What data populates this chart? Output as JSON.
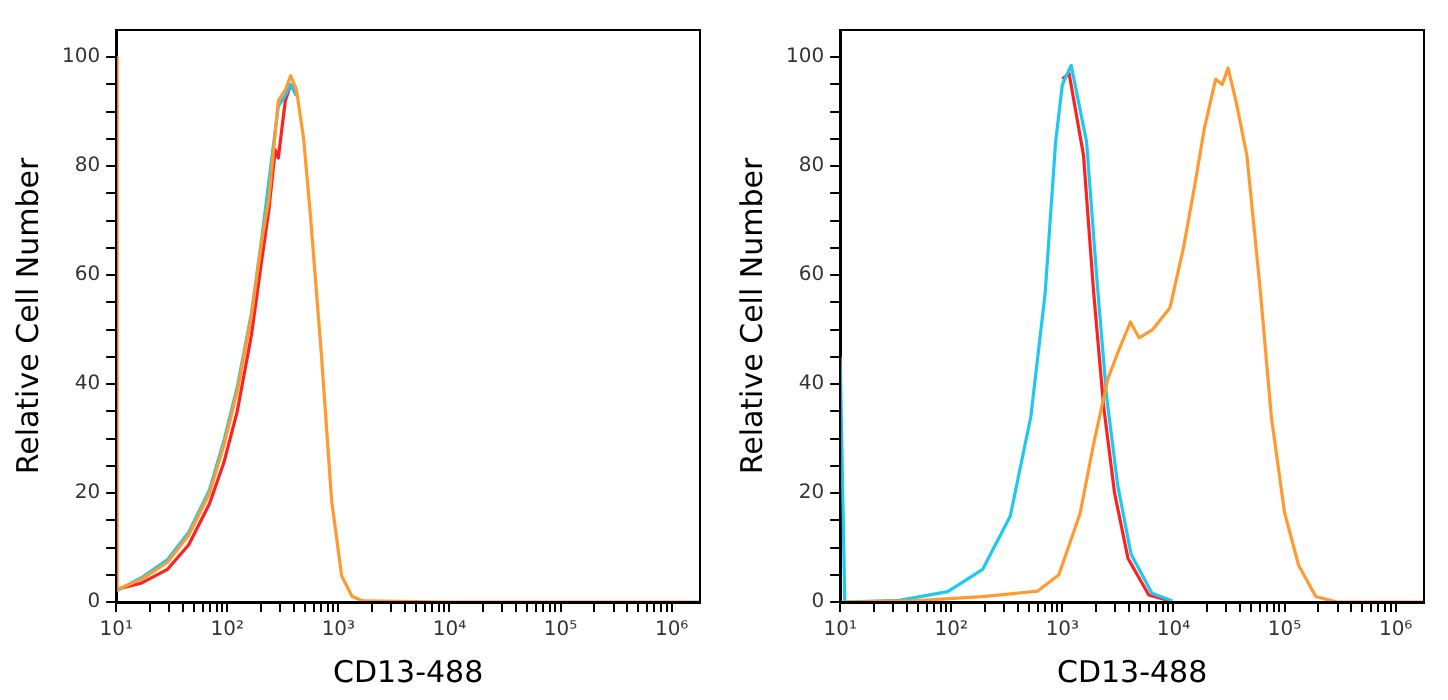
{
  "chart_data": [
    {
      "type": "line",
      "xlabel": "CD13-488",
      "ylabel": "Relative Cell Number",
      "log": "x",
      "grid": false,
      "legend": false,
      "marker": "none",
      "line_style": "solid",
      "xlim": [
        10,
        1800000
      ],
      "ylim": [
        0,
        105
      ],
      "xticks": [
        {
          "value": 10,
          "label": "10¹"
        },
        {
          "value": 20,
          "label": null
        },
        {
          "value": 30,
          "label": null
        },
        {
          "value": 40,
          "label": null
        },
        {
          "value": 50,
          "label": null
        },
        {
          "value": 60,
          "label": null
        },
        {
          "value": 70,
          "label": null
        },
        {
          "value": 80,
          "label": null
        },
        {
          "value": 90,
          "label": null
        },
        {
          "value": 100,
          "label": "10²"
        },
        {
          "value": 200,
          "label": null
        },
        {
          "value": 300,
          "label": null
        },
        {
          "value": 400,
          "label": null
        },
        {
          "value": 500,
          "label": null
        },
        {
          "value": 600,
          "label": null
        },
        {
          "value": 700,
          "label": null
        },
        {
          "value": 800,
          "label": null
        },
        {
          "value": 900,
          "label": null
        },
        {
          "value": 1000,
          "label": "10³"
        },
        {
          "value": 2000,
          "label": null
        },
        {
          "value": 3000,
          "label": null
        },
        {
          "value": 4000,
          "label": null
        },
        {
          "value": 5000,
          "label": null
        },
        {
          "value": 6000,
          "label": null
        },
        {
          "value": 7000,
          "label": null
        },
        {
          "value": 8000,
          "label": null
        },
        {
          "value": 9000,
          "label": null
        },
        {
          "value": 10000,
          "label": "10⁴"
        },
        {
          "value": 20000,
          "label": null
        },
        {
          "value": 30000,
          "label": null
        },
        {
          "value": 40000,
          "label": null
        },
        {
          "value": 50000,
          "label": null
        },
        {
          "value": 60000,
          "label": null
        },
        {
          "value": 70000,
          "label": null
        },
        {
          "value": 80000,
          "label": null
        },
        {
          "value": 90000,
          "label": null
        },
        {
          "value": 100000,
          "label": "10⁵"
        },
        {
          "value": 200000,
          "label": null
        },
        {
          "value": 300000,
          "label": null
        },
        {
          "value": 400000,
          "label": null
        },
        {
          "value": 500000,
          "label": null
        },
        {
          "value": 600000,
          "label": null
        },
        {
          "value": 700000,
          "label": null
        },
        {
          "value": 800000,
          "label": null
        },
        {
          "value": 900000,
          "label": null
        },
        {
          "value": 1000000,
          "label": "10⁶"
        }
      ],
      "yticks": [
        0,
        {
          "value": 5,
          "label": null
        },
        {
          "value": 10,
          "label": null
        },
        {
          "value": 15,
          "label": null
        },
        20,
        {
          "value": 25,
          "label": null
        },
        {
          "value": 30,
          "label": null
        },
        {
          "value": 35,
          "label": null
        },
        40,
        {
          "value": 45,
          "label": null
        },
        {
          "value": 50,
          "label": null
        },
        {
          "value": 55,
          "label": null
        },
        60,
        {
          "value": 65,
          "label": null
        },
        {
          "value": 70,
          "label": null
        },
        {
          "value": 75,
          "label": null
        },
        80,
        {
          "value": 85,
          "label": null
        },
        {
          "value": 90,
          "label": null
        },
        {
          "value": 95,
          "label": null
        },
        100
      ],
      "series": [
        {
          "color": "#ff2020",
          "x": [
            10,
            17,
            29,
            45,
            69,
            93,
            123,
            165,
            205,
            237,
            270,
            288,
            333,
            372,
            420
          ],
          "values": [
            2.3,
            3.5,
            6,
            10.5,
            18,
            25.5,
            35,
            49,
            63,
            72,
            83,
            81.5,
            92,
            95,
            93
          ]
        },
        {
          "color": "#1ec8f0",
          "x": [
            10,
            17,
            29,
            45,
            69,
            93,
            123,
            165,
            205,
            288,
            333,
            372,
            420
          ],
          "values": [
            2,
            4.5,
            7.8,
            12.8,
            20.5,
            29.5,
            39.5,
            53,
            67,
            91,
            93,
            95,
            93
          ]
        },
        {
          "color": "#ff9a30",
          "x": [
            10,
            10.2,
            17,
            29,
            45,
            69,
            93,
            123,
            165,
            205,
            237,
            288,
            333,
            372,
            420,
            487,
            560,
            700,
            870,
            1070,
            1330,
            1660,
            10000,
            100000,
            1000000,
            1800000
          ],
          "values": [
            100,
            2.3,
            4.2,
            7.3,
            12.3,
            19.9,
            28.7,
            38.7,
            52.6,
            66.4,
            74,
            92,
            94,
            96.6,
            94,
            85,
            71,
            46,
            18.6,
            4.8,
            1,
            0.2,
            0,
            0,
            0,
            0
          ]
        }
      ]
    },
    {
      "type": "line",
      "xlabel": "CD13-488",
      "ylabel": "Relative Cell Number",
      "log": "x",
      "grid": false,
      "legend": false,
      "marker": "none",
      "line_style": "solid",
      "xlim": [
        10,
        1800000
      ],
      "ylim": [
        0,
        105
      ],
      "xticks": [
        {
          "value": 10,
          "label": "10¹"
        },
        {
          "value": 20,
          "label": null
        },
        {
          "value": 30,
          "label": null
        },
        {
          "value": 40,
          "label": null
        },
        {
          "value": 50,
          "label": null
        },
        {
          "value": 60,
          "label": null
        },
        {
          "value": 70,
          "label": null
        },
        {
          "value": 80,
          "label": null
        },
        {
          "value": 90,
          "label": null
        },
        {
          "value": 100,
          "label": "10²"
        },
        {
          "value": 200,
          "label": null
        },
        {
          "value": 300,
          "label": null
        },
        {
          "value": 400,
          "label": null
        },
        {
          "value": 500,
          "label": null
        },
        {
          "value": 600,
          "label": null
        },
        {
          "value": 700,
          "label": null
        },
        {
          "value": 800,
          "label": null
        },
        {
          "value": 900,
          "label": null
        },
        {
          "value": 1000,
          "label": "10³"
        },
        {
          "value": 2000,
          "label": null
        },
        {
          "value": 3000,
          "label": null
        },
        {
          "value": 4000,
          "label": null
        },
        {
          "value": 5000,
          "label": null
        },
        {
          "value": 6000,
          "label": null
        },
        {
          "value": 7000,
          "label": null
        },
        {
          "value": 8000,
          "label": null
        },
        {
          "value": 9000,
          "label": null
        },
        {
          "value": 10000,
          "label": "10⁴"
        },
        {
          "value": 20000,
          "label": null
        },
        {
          "value": 30000,
          "label": null
        },
        {
          "value": 40000,
          "label": null
        },
        {
          "value": 50000,
          "label": null
        },
        {
          "value": 60000,
          "label": null
        },
        {
          "value": 70000,
          "label": null
        },
        {
          "value": 80000,
          "label": null
        },
        {
          "value": 90000,
          "label": null
        },
        {
          "value": 100000,
          "label": "10⁵"
        },
        {
          "value": 200000,
          "label": null
        },
        {
          "value": 300000,
          "label": null
        },
        {
          "value": 400000,
          "label": null
        },
        {
          "value": 500000,
          "label": null
        },
        {
          "value": 600000,
          "label": null
        },
        {
          "value": 700000,
          "label": null
        },
        {
          "value": 800000,
          "label": null
        },
        {
          "value": 900000,
          "label": null
        },
        {
          "value": 1000000,
          "label": "10⁶"
        }
      ],
      "yticks": [
        0,
        {
          "value": 5,
          "label": null
        },
        {
          "value": 10,
          "label": null
        },
        {
          "value": 15,
          "label": null
        },
        20,
        {
          "value": 25,
          "label": null
        },
        {
          "value": 30,
          "label": null
        },
        {
          "value": 35,
          "label": null
        },
        40,
        {
          "value": 45,
          "label": null
        },
        {
          "value": 50,
          "label": null
        },
        {
          "value": 55,
          "label": null
        },
        60,
        {
          "value": 65,
          "label": null
        },
        {
          "value": 70,
          "label": null
        },
        {
          "value": 75,
          "label": null
        },
        80,
        {
          "value": 85,
          "label": null
        },
        {
          "value": 90,
          "label": null
        },
        {
          "value": 95,
          "label": null
        },
        100
      ],
      "series": [
        {
          "color": "#ff2020",
          "x": [
            1000,
            1150,
            1550,
            1910,
            2350,
            2950,
            3900,
            6000,
            9300
          ],
          "values": [
            96,
            97,
            82,
            57,
            36,
            20,
            8,
            1.3,
            0.2
          ]
        },
        {
          "color": "#1ec8f0",
          "x": [
            10,
            11,
            34,
            93,
            192,
            340,
            520,
            700,
            870,
            1000,
            1200,
            1650,
            2050,
            2500,
            3150,
            4150,
            6400,
            9800
          ],
          "values": [
            45,
            0,
            0.3,
            1.9,
            6,
            15.8,
            34,
            56.7,
            84.5,
            95,
            98.5,
            84.5,
            59,
            37.8,
            21.4,
            8.8,
            1.6,
            0.2
          ]
        },
        {
          "color": "#ff9a30",
          "x": [
            10,
            45,
            192,
            600,
            930,
            1450,
            1910,
            2570,
            3160,
            4100,
            4900,
            6500,
            9300,
            12300,
            15400,
            19000,
            24000,
            27500,
            31000,
            36500,
            45800,
            60800,
            76000,
            100000,
            134000,
            191000,
            295000,
            1000000,
            1800000
          ],
          "values": [
            0,
            0.2,
            1,
            2,
            5,
            16.4,
            29,
            41,
            45.8,
            51.4,
            48.5,
            50,
            54,
            65,
            76,
            87,
            96,
            95,
            98,
            92,
            82,
            56.7,
            34,
            16.4,
            6.7,
            1,
            0,
            0,
            0
          ]
        }
      ]
    }
  ]
}
